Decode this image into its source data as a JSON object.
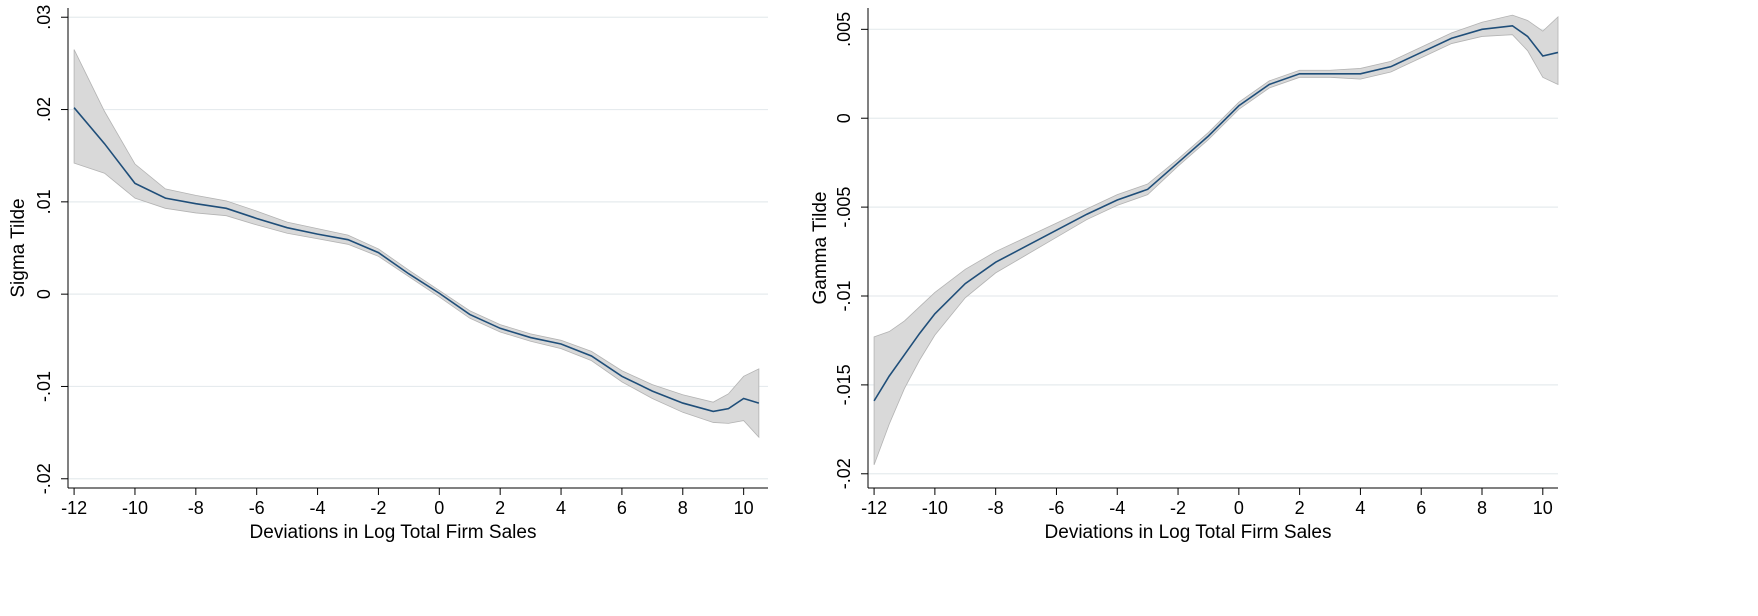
{
  "colors": {
    "line": "#1f4e79",
    "band": "#d9d9d9",
    "band_edge": "#b3b3b3",
    "grid": "#e6ebee",
    "axis": "#000000"
  },
  "chart_data": [
    {
      "type": "line",
      "xlabel": "Deviations in Log Total Firm Sales",
      "ylabel": "Sigma Tilde",
      "xlim": [
        -12.2,
        10.8
      ],
      "ylim": [
        -0.021,
        0.031
      ],
      "xticks": [
        -12,
        -10,
        -8,
        -6,
        -4,
        -2,
        0,
        2,
        4,
        6,
        8,
        10
      ],
      "xtick_labels": [
        "-12",
        "-10",
        "-8",
        "-6",
        "-4",
        "-2",
        "0",
        "2",
        "4",
        "6",
        "8",
        "10"
      ],
      "yticks": [
        -0.02,
        -0.01,
        0,
        0.01,
        0.02,
        0.03
      ],
      "ytick_labels": [
        "-.02",
        "-.01",
        "0",
        ".01",
        ".02",
        ".03"
      ],
      "grid": true,
      "series": [
        {
          "x": [
            -12,
            -11,
            -10,
            -9,
            -8,
            -7,
            -6,
            -5,
            -4,
            -3,
            -2,
            -1,
            0,
            1,
            2,
            3,
            4,
            5,
            6,
            7,
            8,
            9,
            9.5,
            10,
            10.5
          ],
          "y": [
            0.0202,
            0.0163,
            0.012,
            0.0104,
            0.0098,
            0.0093,
            0.0082,
            0.0072,
            0.0065,
            0.0059,
            0.0045,
            0.0022,
            0.0001,
            -0.0022,
            -0.0037,
            -0.0047,
            -0.0054,
            -0.0067,
            -0.0089,
            -0.0105,
            -0.0118,
            -0.0127,
            -0.0124,
            -0.0113,
            -0.0118
          ],
          "lower": [
            0.0142,
            0.0131,
            0.0104,
            0.0093,
            0.0088,
            0.0085,
            0.0075,
            0.0066,
            0.006,
            0.0054,
            0.0041,
            0.0019,
            -0.0003,
            -0.0026,
            -0.0041,
            -0.0051,
            -0.0059,
            -0.0072,
            -0.0095,
            -0.0113,
            -0.0128,
            -0.0139,
            -0.014,
            -0.0137,
            -0.0155
          ],
          "upper": [
            0.0265,
            0.0198,
            0.0141,
            0.0114,
            0.0107,
            0.0101,
            0.009,
            0.0078,
            0.0071,
            0.0064,
            0.0049,
            0.0026,
            0.0004,
            -0.0018,
            -0.0033,
            -0.0043,
            -0.005,
            -0.0062,
            -0.0083,
            -0.0098,
            -0.0109,
            -0.0117,
            -0.0108,
            -0.0089,
            -0.0081
          ]
        }
      ]
    },
    {
      "type": "line",
      "xlabel": "Deviations in Log Total Firm Sales",
      "ylabel": "Gamma Tilde",
      "xlim": [
        -12.2,
        10.5
      ],
      "ylim": [
        -0.0208,
        0.0062
      ],
      "xticks": [
        -12,
        -10,
        -8,
        -6,
        -4,
        -2,
        0,
        2,
        4,
        6,
        8,
        10
      ],
      "xtick_labels": [
        "-12",
        "-10",
        "-8",
        "-6",
        "-4",
        "-2",
        "0",
        "2",
        "4",
        "6",
        "8",
        "10"
      ],
      "yticks": [
        -0.02,
        -0.015,
        -0.01,
        -0.005,
        0,
        0.005
      ],
      "ytick_labels": [
        "-.02",
        "-.015",
        "-.01",
        "-.005",
        "0",
        ".005"
      ],
      "grid": true,
      "series": [
        {
          "x": [
            -12,
            -11.5,
            -11,
            -10.5,
            -10,
            -9,
            -8,
            -7,
            -6,
            -5,
            -4,
            -3,
            -2,
            -1,
            0,
            1,
            2,
            3,
            4,
            5,
            6,
            7,
            8,
            9,
            9.5,
            10,
            10.5
          ],
          "y": [
            -0.0159,
            -0.0145,
            -0.0133,
            -0.0121,
            -0.011,
            -0.0093,
            -0.0081,
            -0.0072,
            -0.0063,
            -0.0054,
            -0.0046,
            -0.004,
            -0.0025,
            -0.001,
            0.0007,
            0.0019,
            0.0025,
            0.0025,
            0.0025,
            0.0029,
            0.0037,
            0.0045,
            0.005,
            0.0052,
            0.0046,
            0.0035,
            0.0037
          ],
          "lower": [
            -0.0195,
            -0.0172,
            -0.0152,
            -0.0136,
            -0.0122,
            -0.0101,
            -0.0087,
            -0.0077,
            -0.0067,
            -0.0057,
            -0.0049,
            -0.0043,
            -0.0027,
            -0.0012,
            0.0005,
            0.0017,
            0.0023,
            0.0023,
            0.0022,
            0.0026,
            0.0034,
            0.0042,
            0.0046,
            0.0047,
            0.0038,
            0.0023,
            0.0019
          ],
          "upper": [
            -0.0123,
            -0.012,
            -0.0114,
            -0.0106,
            -0.0098,
            -0.0085,
            -0.0075,
            -0.0067,
            -0.0059,
            -0.0051,
            -0.0043,
            -0.0037,
            -0.0023,
            -0.0008,
            0.0009,
            0.0021,
            0.0027,
            0.0027,
            0.0028,
            0.0032,
            0.004,
            0.0048,
            0.0054,
            0.0058,
            0.0055,
            0.0049,
            0.0057
          ]
        }
      ]
    }
  ]
}
